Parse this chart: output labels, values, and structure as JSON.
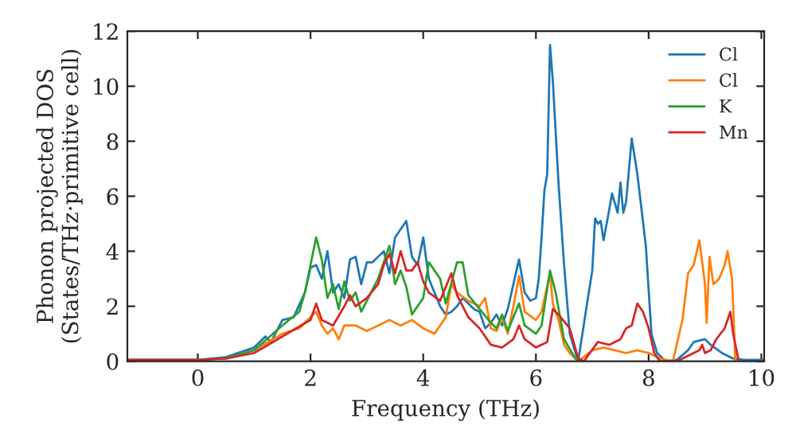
{
  "chart_data": {
    "type": "line",
    "xlabel": "Frequency (THz)",
    "ylabel": "Phonon projected DOS\n(States/THz·primitive cell)",
    "xlim": [
      -1.25,
      10.05
    ],
    "ylim": [
      0,
      12
    ],
    "xticks": [
      0,
      2,
      4,
      6,
      8,
      10
    ],
    "yticks": [
      0,
      2,
      4,
      6,
      8,
      10,
      12
    ],
    "grid": false,
    "legend": "top right",
    "marker": "none",
    "line_style": "solid",
    "series": [
      {
        "name": "Cl",
        "color": "#1f77b4",
        "x": [
          -1.25,
          0,
          0.5,
          1.0,
          1.2,
          1.3,
          1.5,
          1.7,
          1.9,
          2.0,
          2.1,
          2.2,
          2.3,
          2.4,
          2.5,
          2.6,
          2.7,
          2.8,
          2.9,
          3.0,
          3.1,
          3.2,
          3.3,
          3.4,
          3.5,
          3.6,
          3.7,
          3.8,
          3.9,
          4.0,
          4.1,
          4.2,
          4.3,
          4.4,
          4.5,
          4.6,
          4.7,
          4.8,
          4.9,
          5.0,
          5.1,
          5.2,
          5.3,
          5.4,
          5.5,
          5.6,
          5.7,
          5.8,
          5.9,
          6.0,
          6.05,
          6.1,
          6.15,
          6.2,
          6.25,
          6.3,
          6.4,
          6.5,
          6.6,
          6.75,
          6.9,
          7.0,
          7.05,
          7.1,
          7.15,
          7.2,
          7.3,
          7.35,
          7.45,
          7.5,
          7.55,
          7.6,
          7.7,
          7.8,
          7.95,
          8.05,
          8.15,
          8.3,
          8.5,
          8.7,
          8.8,
          9.0,
          9.1,
          9.3,
          9.5,
          9.7,
          10.05
        ],
        "values": [
          0.05,
          0.05,
          0.15,
          0.5,
          0.9,
          0.7,
          1.5,
          1.6,
          2.5,
          3.4,
          3.5,
          3.0,
          4.0,
          2.5,
          2.8,
          2.3,
          3.7,
          3.8,
          2.8,
          3.6,
          3.6,
          3.8,
          4.0,
          3.2,
          4.5,
          4.8,
          5.1,
          3.8,
          3.5,
          4.5,
          3.0,
          2.5,
          2.0,
          1.7,
          1.8,
          2.0,
          2.3,
          2.1,
          1.9,
          1.8,
          1.2,
          1.4,
          1.7,
          1.3,
          1.9,
          2.8,
          3.7,
          2.5,
          2.2,
          2.3,
          3.0,
          4.5,
          6.2,
          6.8,
          11.5,
          10.2,
          6.5,
          3.5,
          1.0,
          0.0,
          2.0,
          3.3,
          5.2,
          5.0,
          5.1,
          4.4,
          5.5,
          6.1,
          5.4,
          6.5,
          5.4,
          5.8,
          8.1,
          6.8,
          4.2,
          1.0,
          0.3,
          0.0,
          0.05,
          0.4,
          0.7,
          0.8,
          0.6,
          0.3,
          0.1,
          0.05,
          0.05
        ]
      },
      {
        "name": "Cl",
        "color": "#ff7f0e",
        "x": [
          0.5,
          1.0,
          1.5,
          1.8,
          2.0,
          2.1,
          2.2,
          2.3,
          2.4,
          2.5,
          2.6,
          2.8,
          3.0,
          3.2,
          3.4,
          3.6,
          3.8,
          4.0,
          4.2,
          4.4,
          4.5,
          4.6,
          4.8,
          5.0,
          5.1,
          5.2,
          5.3,
          5.4,
          5.5,
          5.6,
          5.7,
          5.8,
          6.0,
          6.1,
          6.25,
          6.3,
          6.4,
          6.5,
          6.6,
          6.75,
          7.0,
          7.2,
          7.4,
          7.6,
          7.8,
          8.0,
          8.2,
          8.43,
          8.6,
          8.7,
          8.8,
          8.9,
          9.0,
          9.03,
          9.08,
          9.15,
          9.25,
          9.35,
          9.4,
          9.48,
          9.54
        ],
        "values": [
          0.1,
          0.4,
          1.0,
          1.2,
          1.6,
          1.8,
          1.3,
          1.0,
          1.2,
          0.8,
          1.3,
          1.3,
          1.1,
          1.3,
          1.5,
          1.3,
          1.5,
          1.2,
          1.0,
          1.6,
          2.8,
          2.5,
          2.2,
          2.0,
          2.3,
          1.2,
          1.1,
          1.6,
          1.0,
          2.0,
          3.1,
          1.8,
          1.5,
          1.8,
          3.2,
          2.1,
          1.5,
          0.6,
          0.3,
          0.0,
          0.4,
          0.5,
          0.4,
          0.3,
          0.4,
          0.3,
          0.1,
          0.0,
          1.5,
          3.2,
          3.5,
          4.4,
          2.8,
          1.4,
          3.8,
          2.8,
          3.0,
          3.5,
          4.0,
          3.0,
          0.0
        ]
      },
      {
        "name": "K",
        "color": "#2ca02c",
        "x": [
          -1.25,
          0,
          0.5,
          1.0,
          1.5,
          1.8,
          1.9,
          2.0,
          2.1,
          2.2,
          2.3,
          2.4,
          2.5,
          2.6,
          2.7,
          2.8,
          2.9,
          3.0,
          3.2,
          3.4,
          3.5,
          3.6,
          3.7,
          3.8,
          3.9,
          4.0,
          4.1,
          4.3,
          4.4,
          4.6,
          4.7,
          4.8,
          5.0,
          5.2,
          5.3,
          5.4,
          5.5,
          5.6,
          5.7,
          5.8,
          6.0,
          6.1,
          6.25,
          6.35,
          6.5,
          6.7,
          6.8
        ],
        "values": [
          0.05,
          0.05,
          0.1,
          0.4,
          1.3,
          1.8,
          2.5,
          3.5,
          4.5,
          3.7,
          2.3,
          2.8,
          1.9,
          2.9,
          2.2,
          2.5,
          1.8,
          2.2,
          3.0,
          4.2,
          2.8,
          3.3,
          2.7,
          1.7,
          2.0,
          2.3,
          3.6,
          3.0,
          2.1,
          3.6,
          3.6,
          2.4,
          1.9,
          1.4,
          1.2,
          1.7,
          1.1,
          1.6,
          2.1,
          1.3,
          1.0,
          1.3,
          3.3,
          2.5,
          0.8,
          0.1,
          0.0
        ]
      },
      {
        "name": "Mn",
        "color": "#d62728",
        "x": [
          -1.25,
          0,
          0.5,
          1.0,
          1.5,
          2.0,
          2.1,
          2.2,
          2.4,
          2.6,
          2.7,
          2.8,
          3.0,
          3.2,
          3.3,
          3.4,
          3.5,
          3.6,
          3.7,
          3.8,
          3.9,
          4.0,
          4.1,
          4.3,
          4.5,
          4.6,
          4.8,
          5.0,
          5.2,
          5.4,
          5.6,
          5.7,
          5.8,
          6.0,
          6.2,
          6.3,
          6.4,
          6.6,
          6.75,
          6.85,
          7.1,
          7.3,
          7.5,
          7.6,
          7.7,
          7.8,
          7.9,
          8.0,
          8.1,
          8.2,
          8.5,
          8.7,
          8.9,
          8.95,
          9.0,
          9.1,
          9.2,
          9.35,
          9.45,
          9.5,
          9.6
        ],
        "values": [
          0.05,
          0.05,
          0.1,
          0.3,
          0.9,
          1.5,
          2.1,
          1.5,
          1.3,
          2.0,
          2.4,
          2.0,
          2.3,
          2.8,
          3.5,
          3.9,
          3.2,
          4.0,
          3.3,
          3.3,
          3.6,
          2.9,
          2.5,
          2.2,
          3.2,
          2.4,
          1.6,
          1.2,
          0.6,
          0.5,
          0.8,
          1.3,
          0.8,
          0.5,
          0.7,
          1.9,
          1.7,
          1.2,
          0.1,
          0.0,
          0.7,
          0.6,
          0.8,
          1.2,
          1.3,
          2.1,
          1.8,
          1.2,
          0.3,
          0.0,
          0.0,
          0.2,
          0.4,
          0.6,
          0.3,
          0.4,
          0.8,
          1.2,
          1.8,
          1.0,
          0.0
        ]
      }
    ]
  }
}
